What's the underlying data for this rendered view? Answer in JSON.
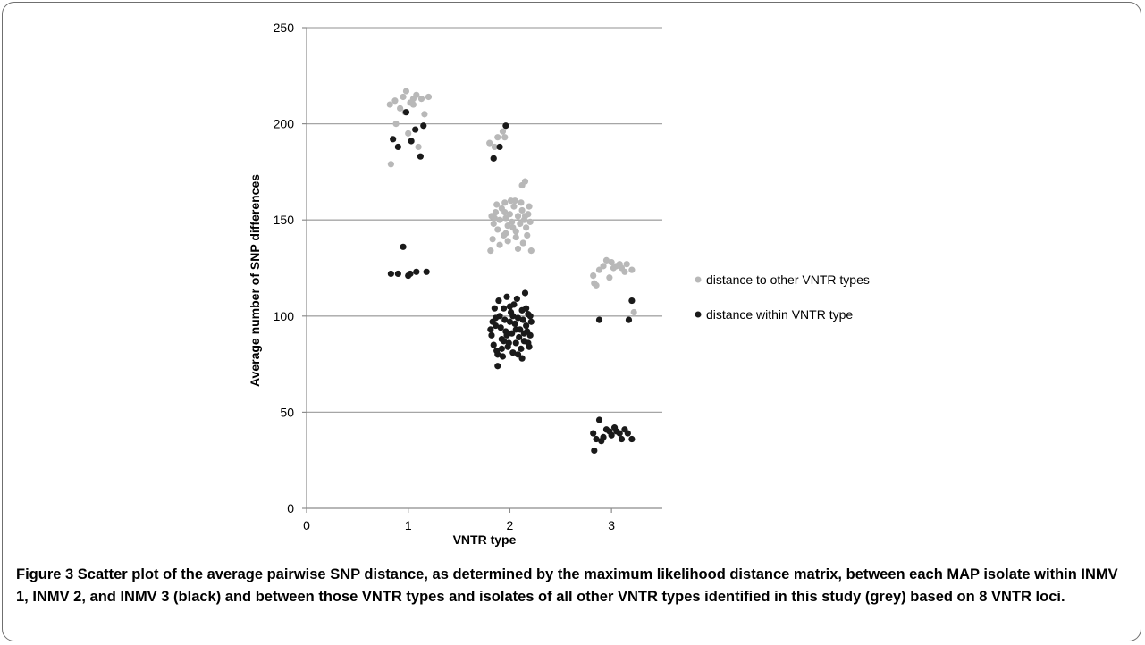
{
  "chart_data": {
    "type": "scatter",
    "title": "",
    "xlabel": "VNTR type",
    "ylabel": "Average number of SNP differences",
    "xlim": [
      0,
      3.5
    ],
    "ylim": [
      0,
      250
    ],
    "x_ticks": [
      0,
      1,
      2,
      3
    ],
    "y_ticks": [
      0,
      50,
      100,
      150,
      200,
      250
    ],
    "grid": "horizontal major gridlines",
    "legend_position": "right",
    "series": [
      {
        "name": "distance to other VNTR types",
        "color": "#b8b8b8",
        "points": [
          [
            0.82,
            210
          ],
          [
            0.87,
            212
          ],
          [
            0.92,
            208
          ],
          [
            0.95,
            214
          ],
          [
            0.98,
            217
          ],
          [
            1.02,
            211
          ],
          [
            1.05,
            213
          ],
          [
            1.08,
            215
          ],
          [
            1.13,
            213
          ],
          [
            1.16,
            205
          ],
          [
            1.2,
            214
          ],
          [
            0.88,
            200
          ],
          [
            1.0,
            195
          ],
          [
            1.05,
            210
          ],
          [
            0.97,
            206
          ],
          [
            1.1,
            188
          ],
          [
            0.83,
            179
          ],
          [
            1.8,
            190
          ],
          [
            1.85,
            188
          ],
          [
            1.88,
            193
          ],
          [
            1.93,
            196
          ],
          [
            1.95,
            193
          ],
          [
            1.84,
            182
          ],
          [
            2.15,
            170
          ],
          [
            2.12,
            168
          ],
          [
            2.05,
            160
          ],
          [
            1.95,
            159
          ],
          [
            1.82,
            152
          ],
          [
            1.84,
            148
          ],
          [
            1.86,
            154
          ],
          [
            1.88,
            145
          ],
          [
            1.9,
            150
          ],
          [
            1.92,
            156
          ],
          [
            1.94,
            142
          ],
          [
            1.96,
            151
          ],
          [
            1.98,
            147
          ],
          [
            2.0,
            153
          ],
          [
            2.02,
            149
          ],
          [
            2.04,
            157
          ],
          [
            2.06,
            144
          ],
          [
            2.08,
            152
          ],
          [
            2.1,
            148
          ],
          [
            2.12,
            155
          ],
          [
            2.14,
            150
          ],
          [
            2.16,
            146
          ],
          [
            2.18,
            153
          ],
          [
            2.2,
            149
          ],
          [
            1.83,
            140
          ],
          [
            1.9,
            137
          ],
          [
            1.98,
            139
          ],
          [
            2.06,
            141
          ],
          [
            2.13,
            138
          ],
          [
            1.87,
            158
          ],
          [
            2.01,
            160
          ],
          [
            2.11,
            159
          ],
          [
            2.19,
            157
          ],
          [
            1.81,
            134
          ],
          [
            2.21,
            134
          ],
          [
            1.96,
            143
          ],
          [
            2.08,
            135
          ],
          [
            1.85,
            151
          ],
          [
            1.95,
            154
          ],
          [
            2.03,
            146
          ],
          [
            2.15,
            152
          ],
          [
            2.17,
            142
          ],
          [
            2.83,
            117
          ],
          [
            2.85,
            116
          ],
          [
            2.82,
            121
          ],
          [
            2.88,
            124
          ],
          [
            2.92,
            126
          ],
          [
            2.95,
            129
          ],
          [
            3.0,
            128
          ],
          [
            3.02,
            125
          ],
          [
            3.05,
            126
          ],
          [
            3.08,
            127
          ],
          [
            3.1,
            125
          ],
          [
            3.15,
            127
          ],
          [
            3.2,
            124
          ],
          [
            3.13,
            123
          ],
          [
            3.22,
            102
          ],
          [
            2.98,
            120
          ]
        ]
      },
      {
        "name": "distance within VNTR type",
        "color": "#1a1a1a",
        "points": [
          [
            0.85,
            192
          ],
          [
            0.9,
            188
          ],
          [
            0.98,
            206
          ],
          [
            1.03,
            191
          ],
          [
            1.07,
            197
          ],
          [
            1.12,
            183
          ],
          [
            1.15,
            199
          ],
          [
            0.83,
            122
          ],
          [
            0.9,
            122
          ],
          [
            0.95,
            136
          ],
          [
            1.0,
            121
          ],
          [
            1.02,
            122
          ],
          [
            1.08,
            123
          ],
          [
            1.18,
            123
          ],
          [
            1.84,
            182
          ],
          [
            1.9,
            188
          ],
          [
            1.96,
            199
          ],
          [
            1.82,
            90
          ],
          [
            1.84,
            85
          ],
          [
            1.86,
            95
          ],
          [
            1.88,
            80
          ],
          [
            1.9,
            100
          ],
          [
            1.92,
            88
          ],
          [
            1.94,
            104
          ],
          [
            1.96,
            92
          ],
          [
            1.98,
            84
          ],
          [
            2.0,
            97
          ],
          [
            2.02,
            91
          ],
          [
            2.04,
            106
          ],
          [
            2.06,
            86
          ],
          [
            2.08,
            99
          ],
          [
            2.1,
            93
          ],
          [
            2.12,
            103
          ],
          [
            2.14,
            87
          ],
          [
            2.16,
            95
          ],
          [
            2.18,
            101
          ],
          [
            2.2,
            90
          ],
          [
            1.83,
            97
          ],
          [
            1.85,
            104
          ],
          [
            1.87,
            82
          ],
          [
            1.89,
            108
          ],
          [
            1.91,
            94
          ],
          [
            1.93,
            79
          ],
          [
            1.95,
            98
          ],
          [
            1.97,
            110
          ],
          [
            1.99,
            86
          ],
          [
            2.01,
            102
          ],
          [
            2.03,
            81
          ],
          [
            2.05,
            96
          ],
          [
            2.07,
            109
          ],
          [
            2.09,
            89
          ],
          [
            2.11,
            83
          ],
          [
            2.13,
            98
          ],
          [
            2.15,
            112
          ],
          [
            2.17,
            92
          ],
          [
            2.19,
            84
          ],
          [
            2.21,
            97
          ],
          [
            1.81,
            93
          ],
          [
            1.86,
            99
          ],
          [
            1.92,
            83
          ],
          [
            1.97,
            90
          ],
          [
            2.03,
            100
          ],
          [
            2.08,
            80
          ],
          [
            2.14,
            91
          ],
          [
            2.18,
            86
          ],
          [
            2.2,
            100
          ],
          [
            1.88,
            74
          ],
          [
            1.94,
            87
          ],
          [
            2.0,
            105
          ],
          [
            2.06,
            93
          ],
          [
            2.12,
            78
          ],
          [
            2.16,
            104
          ],
          [
            2.82,
            39
          ],
          [
            2.85,
            36
          ],
          [
            2.83,
            30
          ],
          [
            2.88,
            46
          ],
          [
            2.9,
            35
          ],
          [
            2.92,
            37
          ],
          [
            2.95,
            41
          ],
          [
            2.98,
            40
          ],
          [
            3.0,
            38
          ],
          [
            3.03,
            42
          ],
          [
            3.05,
            40
          ],
          [
            3.08,
            39
          ],
          [
            3.1,
            36
          ],
          [
            3.13,
            41
          ],
          [
            3.16,
            39
          ],
          [
            3.2,
            36
          ],
          [
            2.88,
            98
          ],
          [
            3.17,
            98
          ],
          [
            3.2,
            108
          ]
        ]
      }
    ]
  },
  "caption": {
    "label": "Figure 3",
    "text": " Scatter plot of the average pairwise SNP distance, as determined by the maximum likelihood distance matrix, between each MAP isolate within INMV 1, INMV 2, and INMV 3 (black) and between those VNTR types and isolates of all other VNTR types identified in this study (grey) based on 8 VNTR loci."
  }
}
